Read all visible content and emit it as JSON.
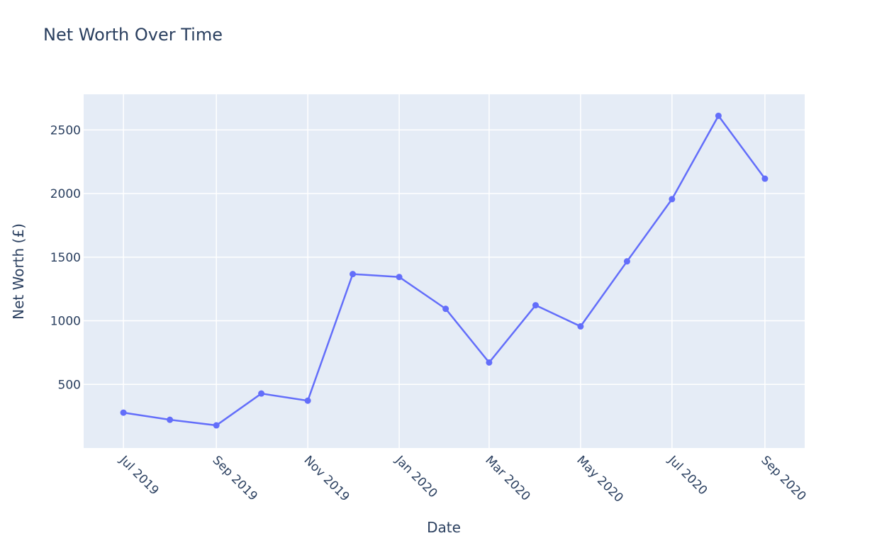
{
  "chart_data": {
    "type": "line",
    "title": "Net Worth Over Time",
    "x_label": "Date",
    "y_label": "Net Worth (£)",
    "x": [
      "2019-07",
      "2019-08",
      "2019-09",
      "2019-10",
      "2019-11",
      "2019-12",
      "2020-01",
      "2020-02",
      "2020-03",
      "2020-04",
      "2020-05",
      "2020-06",
      "2020-07",
      "2020-08",
      "2020-09"
    ],
    "series": [
      {
        "color": "#636efa",
        "values": [
          278,
          222,
          178,
          428,
          372,
          1367,
          1344,
          1094,
          672,
          1122,
          956,
          1467,
          1956,
          2611,
          2117
        ]
      }
    ],
    "xticks": [
      {
        "value": "2019-07",
        "label": "Jul 2019"
      },
      {
        "value": "2019-09",
        "label": "Sep 2019"
      },
      {
        "value": "2019-11",
        "label": "Nov 2019"
      },
      {
        "value": "2020-01",
        "label": "Jan 2020"
      },
      {
        "value": "2020-03",
        "label": "Mar 2020"
      },
      {
        "value": "2020-05",
        "label": "May 2020"
      },
      {
        "value": "2020-07",
        "label": "Jul 2020"
      },
      {
        "value": "2020-09",
        "label": "Sep 2020"
      }
    ],
    "ylim": [
      0,
      2780
    ],
    "yticks": [
      500,
      1000,
      1500,
      2000,
      2500
    ],
    "grid": true
  }
}
